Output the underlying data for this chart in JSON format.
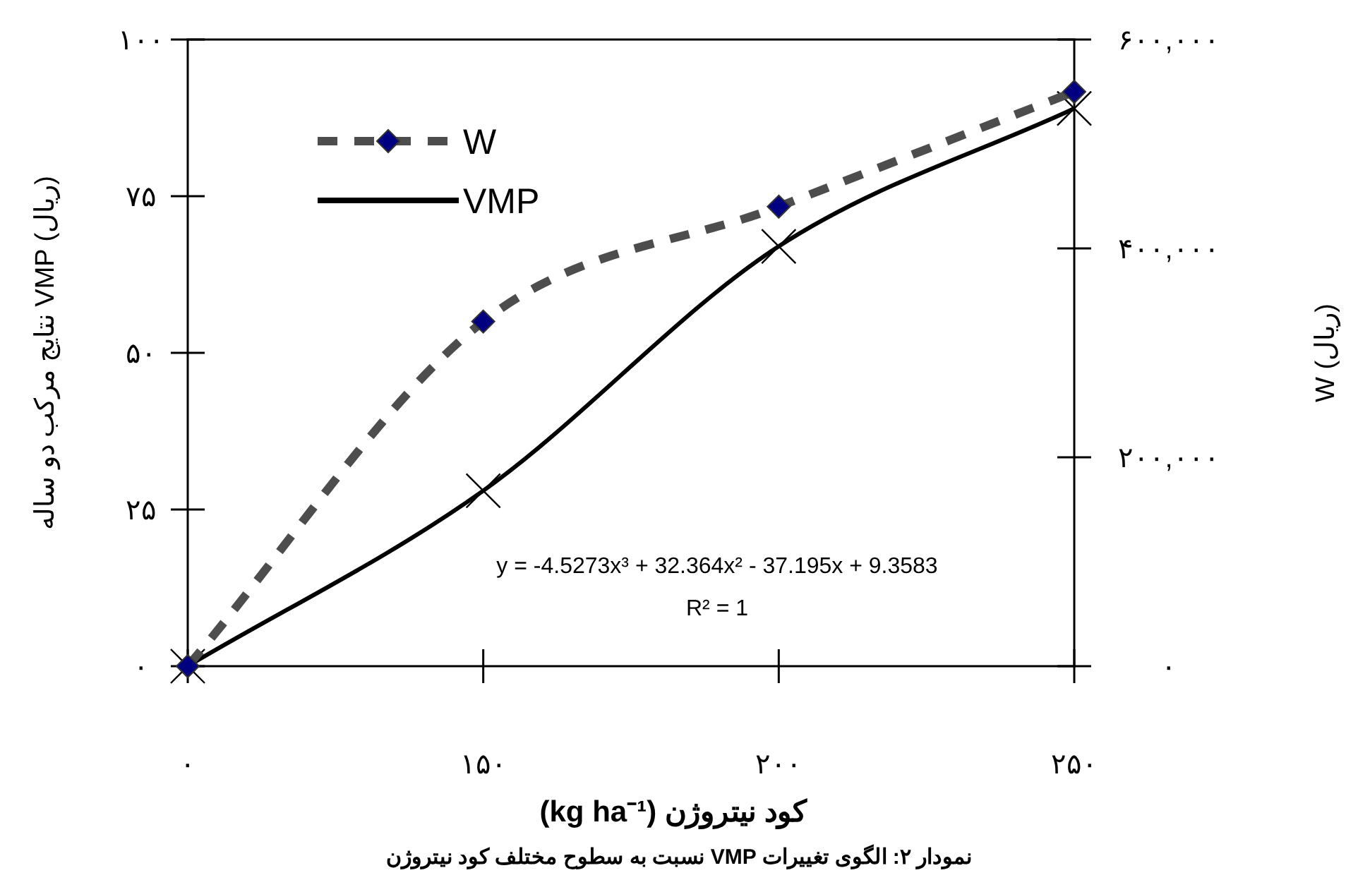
{
  "chart_data": {
    "type": "line",
    "xlabel": "کود نیتروژن (kg ha⁻¹)",
    "ylabel": "نتایج مرکب دو ساله VMP (ریال)",
    "y2label": "W (ریال)",
    "categories": [
      "۰",
      "۱۵۰",
      "۲۰۰",
      "۲۵۰"
    ],
    "series": [
      {
        "name": "W",
        "axis": "y2",
        "color": "#4d4d4d",
        "colors": [
          "#000080",
          "#000080",
          "#000080",
          "#000080"
        ],
        "marker": "diamond",
        "line_style": "dashed",
        "values": [
          0,
          330000,
          440000,
          550000
        ]
      },
      {
        "name": "VMP",
        "color": "#000000",
        "marker": "cross",
        "line_style": "solid",
        "values": [
          0,
          28,
          67,
          89
        ]
      }
    ],
    "ylim": [
      0,
      100
    ],
    "yticks": [
      {
        "value": 0,
        "label": "۰"
      },
      {
        "value": 25,
        "label": "۲۵"
      },
      {
        "value": 50,
        "label": "۵۰"
      },
      {
        "value": 75,
        "label": "۷۵"
      },
      {
        "value": 100,
        "label": "۱۰۰"
      }
    ],
    "y2lim": [
      0,
      600000
    ],
    "y2ticks": [
      {
        "value": 0,
        "label": "۰"
      },
      {
        "value": 200000,
        "label": "۲۰۰,۰۰۰"
      },
      {
        "value": 400000,
        "label": "۴۰۰,۰۰۰"
      },
      {
        "value": 600000,
        "label": "۶۰۰,۰۰۰"
      }
    ],
    "grid": false,
    "legend": "top left",
    "annotations": [
      "y = -4.5273x³ + 32.364x² - 37.195x + 9.3583",
      "R² = 1",
      "نمودار ۲: الگوی تغییرات VMP نسبت به سطوح مختلف کود نیتروژن"
    ]
  }
}
